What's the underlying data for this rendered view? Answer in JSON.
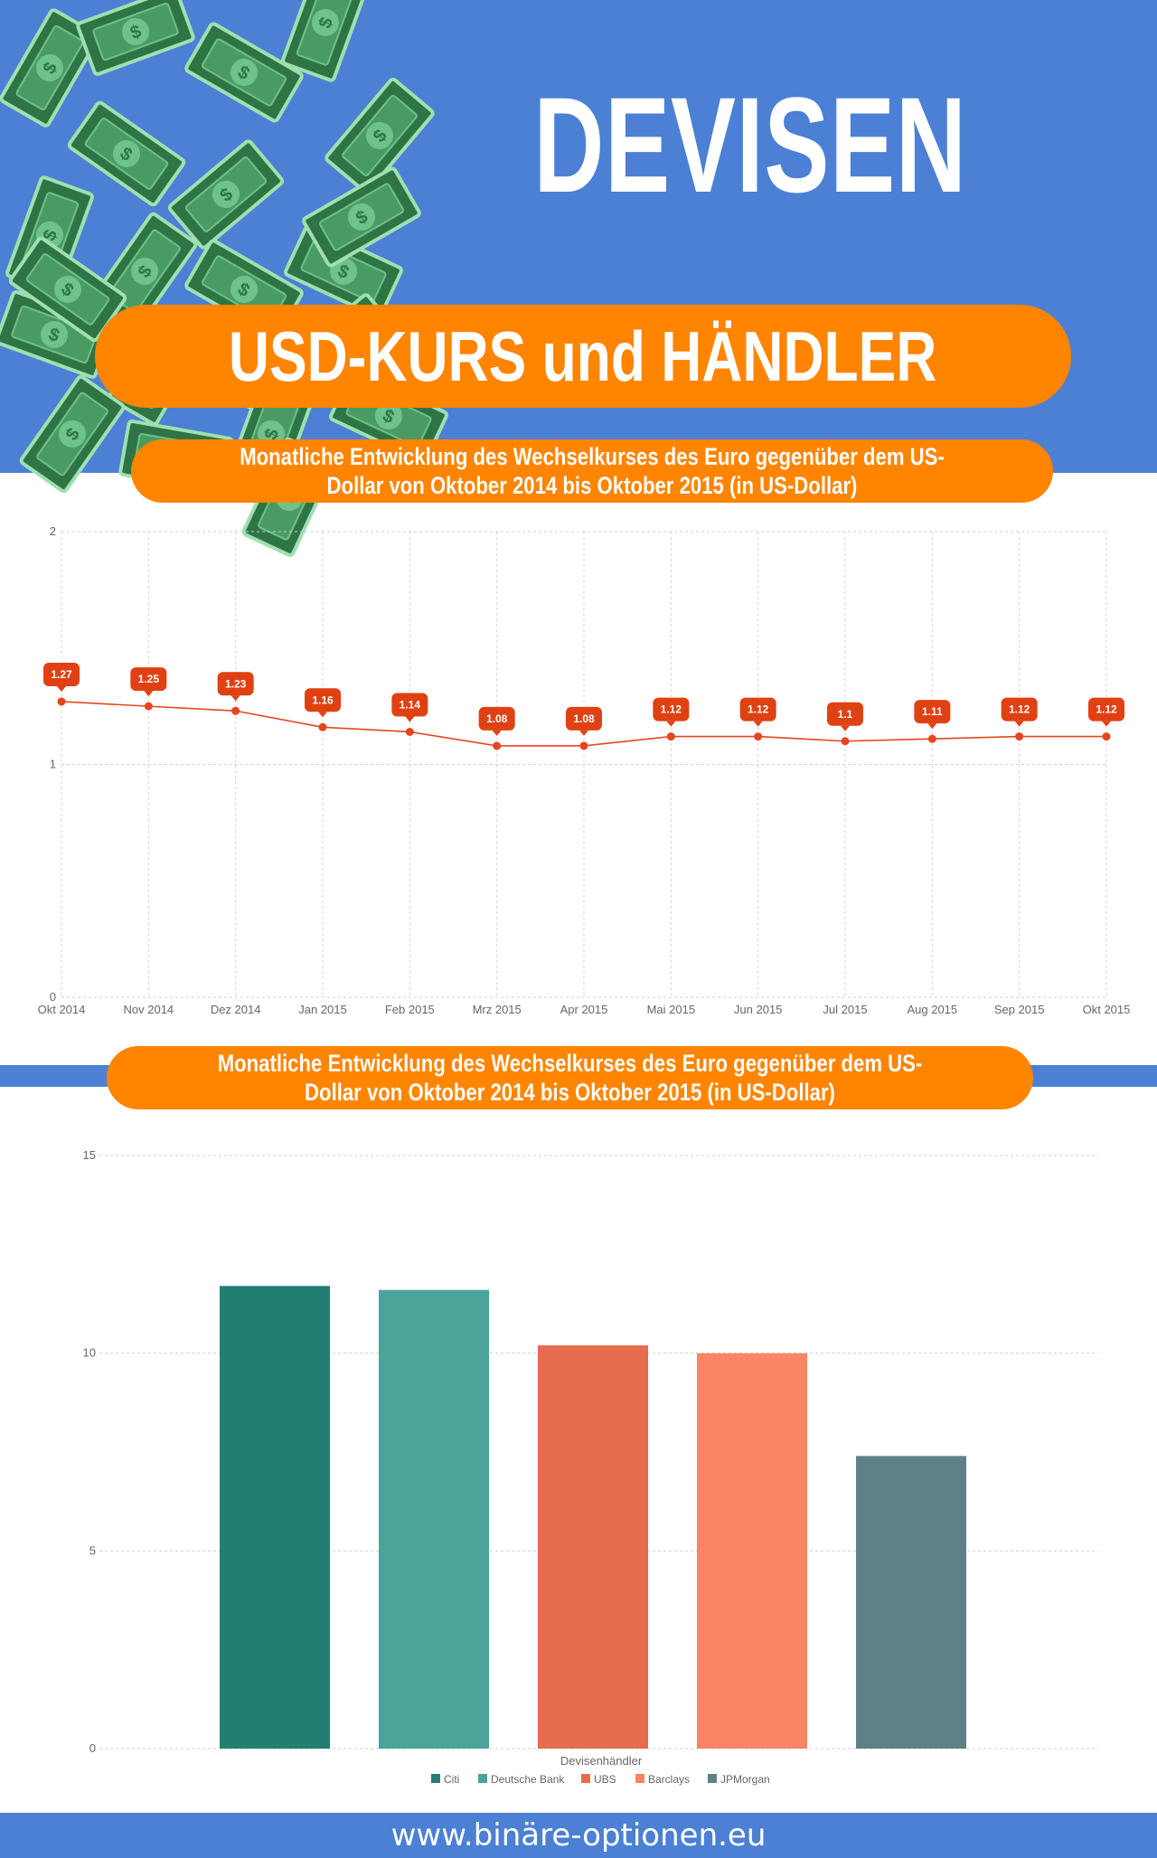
{
  "header": {
    "title": "DEVISEN",
    "banner": "USD-KURS und HÄNDLER"
  },
  "colors": {
    "header_bg": "#4b80d4",
    "accent_orange": "#ff8400",
    "line_color": "#e4461f",
    "bill_green": "#3d8a57"
  },
  "decoration": {
    "icon": "money-bill-icon",
    "count": 22
  },
  "footer": {
    "url": "www.binäre-optionen.eu"
  },
  "chart_data": [
    {
      "type": "line",
      "title": "Monatliche Entwicklung des Wechselkurses des Euro gegenüber dem US-Dollar von Oktober 2014 bis Oktober 2015 (in US-Dollar)",
      "x": [
        "Okt 2014",
        "Nov 2014",
        "Dez 2014",
        "Jan 2015",
        "Feb 2015",
        "Mrz 2015",
        "Apr 2015",
        "Mai 2015",
        "Jun 2015",
        "Jul 2015",
        "Aug 2015",
        "Sep 2015",
        "Okt 2015"
      ],
      "values": [
        1.27,
        1.25,
        1.23,
        1.16,
        1.14,
        1.08,
        1.08,
        1.12,
        1.12,
        1.1,
        1.11,
        1.12,
        1.12
      ],
      "data_labels": [
        "1.27",
        "1.25",
        "1.23",
        "1.16",
        "1.14",
        "1.08",
        "1.08",
        "1.12",
        "1.12",
        "1.1",
        "1.11",
        "1.12",
        "1.12"
      ],
      "ylim": [
        0,
        2
      ],
      "yticks": [
        "0",
        "1",
        "2"
      ],
      "grid": true
    },
    {
      "type": "bar",
      "title": "Monatliche Entwicklung des Wechselkurses des Euro gegenüber dem US-Dollar von Oktober 2014 bis Oktober 2015 (in US-Dollar)",
      "xlabel": "Devisenhändler",
      "series": [
        {
          "name": "Citi",
          "value": 11.7,
          "color": "#237e72"
        },
        {
          "name": "Deutsche Bank",
          "value": 11.6,
          "color": "#4ba399"
        },
        {
          "name": "UBS",
          "value": 10.2,
          "color": "#e56c4e"
        },
        {
          "name": "Barclays",
          "value": 10.0,
          "color": "#fa8466"
        },
        {
          "name": "JPMorgan",
          "value": 7.4,
          "color": "#5f8086"
        }
      ],
      "ylim": [
        0,
        15
      ],
      "yticks": [
        "0",
        "5",
        "10",
        "15"
      ],
      "legend": "bottom",
      "grid": true
    }
  ]
}
